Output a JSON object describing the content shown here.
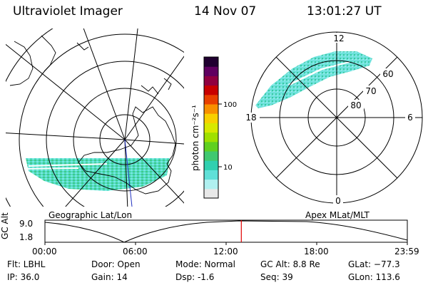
{
  "header": {
    "instrument": "Ultraviolet Imager",
    "date": "14 Nov 07",
    "time": "13:01:27 UT"
  },
  "left_map": {
    "label": "Geographic Lat/Lon"
  },
  "right_map": {
    "label": "Apex MLat/MLT",
    "mlt_labels": [
      "12",
      "18",
      "6",
      "0"
    ],
    "lat_labels": [
      "60",
      "70",
      "80"
    ]
  },
  "colorbar": {
    "unit_label": "photon cm⁻²s⁻¹",
    "tick_labels": [
      "100",
      "10"
    ],
    "colors": [
      "#e8e8e8",
      "#b0f0f0",
      "#60e0d8",
      "#30d0b0",
      "#40c870",
      "#60d020",
      "#a0e000",
      "#d8e800",
      "#f8d000",
      "#f89000",
      "#e84000",
      "#c80000",
      "#900040",
      "#600060",
      "#200030"
    ]
  },
  "altitude_plot": {
    "ylabel": "GC Alt",
    "y_ticks": [
      "9.0",
      "1.8"
    ],
    "x_ticks": [
      "00:00",
      "06:00",
      "12:00",
      "18:00",
      "23:59"
    ],
    "current_time_fraction": 0.542
  },
  "info": {
    "filter": "Flt: LBHL",
    "ip": "IP: 36.0",
    "door": "Door: Open",
    "gain": "Gain: 14",
    "mode": "Mode: Normal",
    "dsp": "Dsp:    -1.6",
    "gc_alt": "GC Alt: 8.8 Re",
    "seq": "Seq: 39",
    "glat": "GLat: −77.3",
    "glon": "GLon: 113.6"
  }
}
